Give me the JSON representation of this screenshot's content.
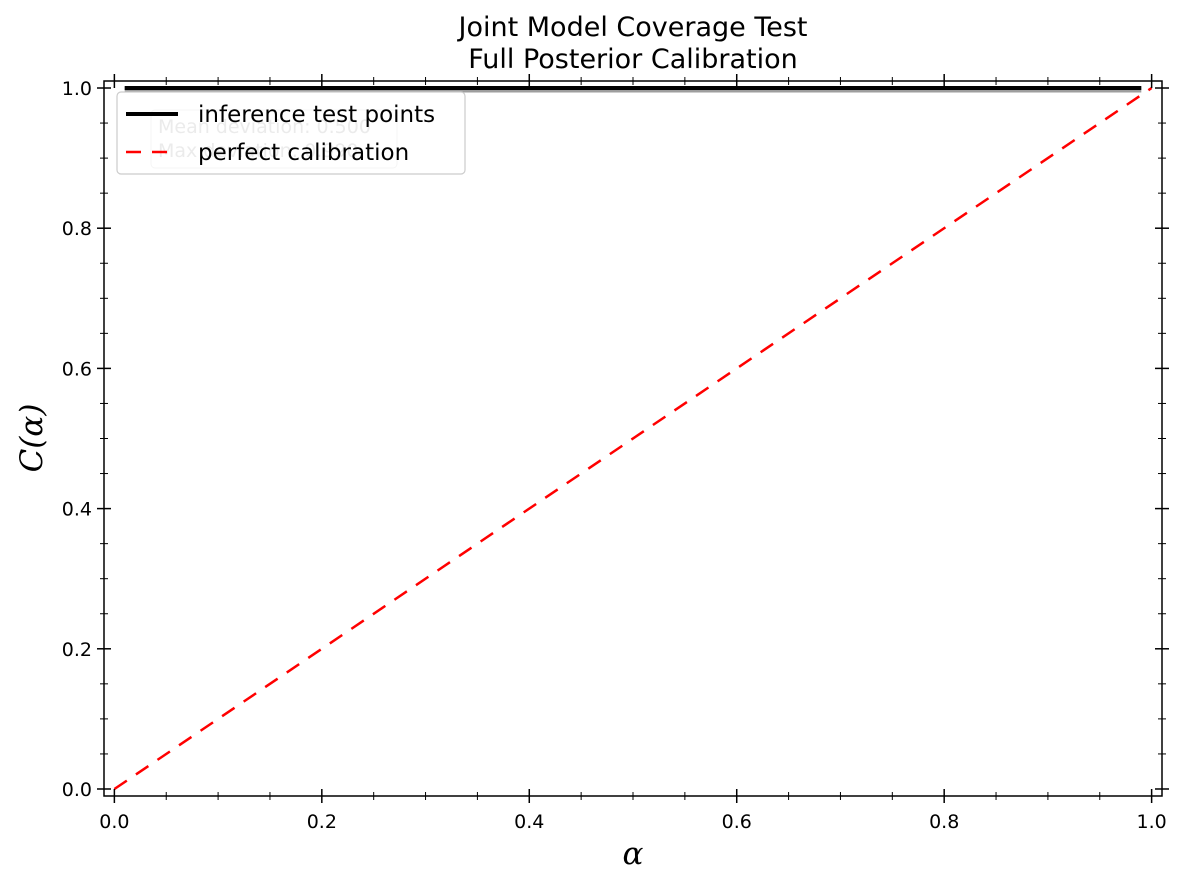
{
  "chart_data": {
    "type": "line",
    "title": "Joint Model Coverage Test",
    "subtitle": "Full Posterior Calibration",
    "xlabel": "α",
    "ylabel": "C(α)",
    "xlim": [
      -0.01,
      1.01
    ],
    "ylim": [
      -0.01,
      1.01
    ],
    "xticks": [
      0.0,
      0.2,
      0.4,
      0.6,
      0.8,
      1.0
    ],
    "xtick_labels": [
      "0.0",
      "0.2",
      "0.4",
      "0.6",
      "0.8",
      "1.0"
    ],
    "yticks": [
      0.0,
      0.2,
      0.4,
      0.6,
      0.8,
      1.0
    ],
    "ytick_labels": [
      "0.0",
      "0.2",
      "0.4",
      "0.6",
      "0.8",
      "1.0"
    ],
    "grid": false,
    "legend_position": "upper-left",
    "series": [
      {
        "name": "inference test points",
        "style": "solid",
        "color": "#000000",
        "band_color": "#9e9e9e",
        "x": [
          0.01,
          0.99
        ],
        "y": [
          1.0,
          1.0
        ]
      },
      {
        "name": "perfect calibration",
        "style": "dashed",
        "color": "#ff0000",
        "x": [
          0.0,
          1.0
        ],
        "y": [
          0.0,
          1.0
        ]
      }
    ],
    "annotation": {
      "lines": [
        "Mean deviation: 0.500",
        "Max deviation: 0.990"
      ]
    }
  }
}
